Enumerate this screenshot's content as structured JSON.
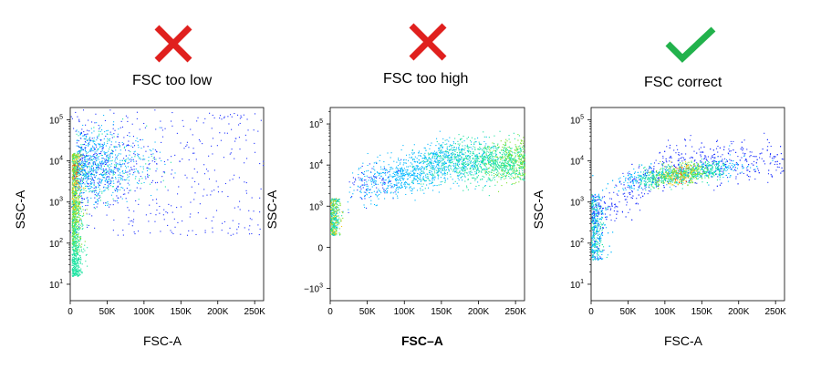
{
  "colors": {
    "cross": "#e0201e",
    "check": "#22b24c",
    "axis": "#000000"
  },
  "chart_data": [
    {
      "type": "scatter",
      "title": "FSC too low",
      "status": "cross",
      "xlabel": "FSC-A",
      "ylabel": "SSC-A",
      "x_ticks": [
        {
          "v": 0,
          "label": "0"
        },
        {
          "v": 50000,
          "label": "50K"
        },
        {
          "v": 100000,
          "label": "100K"
        },
        {
          "v": 150000,
          "label": "150K"
        },
        {
          "v": 200000,
          "label": "200K"
        },
        {
          "v": 250000,
          "label": "250K"
        }
      ],
      "y_ticks": [
        {
          "v": 1,
          "base": "10",
          "exp": "1"
        },
        {
          "v": 2,
          "base": "10",
          "exp": "2"
        },
        {
          "v": 3,
          "base": "10",
          "exp": "3"
        },
        {
          "v": 4,
          "base": "10",
          "exp": "4"
        },
        {
          "v": 5,
          "base": "10",
          "exp": "5"
        }
      ],
      "xlim": [
        0,
        262144
      ],
      "ylim": [
        0.6,
        5.3
      ],
      "y_scale": "log",
      "population": "dense streak at very low FSC-A along the left edge spreading to high SSC-A"
    },
    {
      "type": "scatter",
      "title": "FSC too high",
      "status": "cross",
      "xlabel": "FSC–A",
      "ylabel": "SSC-A",
      "x_ticks": [
        {
          "v": 0,
          "label": "0"
        },
        {
          "v": 50000,
          "label": "50K"
        },
        {
          "v": 100000,
          "label": "100K"
        },
        {
          "v": 150000,
          "label": "150K"
        },
        {
          "v": 200000,
          "label": "200K"
        },
        {
          "v": 250000,
          "label": "250K"
        }
      ],
      "y_ticks": [
        {
          "v": -1,
          "base": "−10",
          "exp": "3"
        },
        {
          "v": 0,
          "base": "0",
          "exp": ""
        },
        {
          "v": 1,
          "base": "10",
          "exp": "3"
        },
        {
          "v": 2,
          "base": "10",
          "exp": "4"
        },
        {
          "v": 3,
          "base": "10",
          "exp": "5"
        }
      ],
      "xlim": [
        0,
        262144
      ],
      "ylim": [
        -1.3,
        3.4
      ],
      "y_scale": "biexponential",
      "population": "cells pushed to high FSC-A, dense cloud near the right edge"
    },
    {
      "type": "scatter",
      "title": "FSC correct",
      "status": "check",
      "xlabel": "FSC-A",
      "ylabel": "SSC-A",
      "x_ticks": [
        {
          "v": 0,
          "label": "0"
        },
        {
          "v": 50000,
          "label": "50K"
        },
        {
          "v": 100000,
          "label": "100K"
        },
        {
          "v": 150000,
          "label": "150K"
        },
        {
          "v": 200000,
          "label": "200K"
        },
        {
          "v": 250000,
          "label": "250K"
        }
      ],
      "y_ticks": [
        {
          "v": 1,
          "base": "10",
          "exp": "1"
        },
        {
          "v": 2,
          "base": "10",
          "exp": "2"
        },
        {
          "v": 3,
          "base": "10",
          "exp": "3"
        },
        {
          "v": 4,
          "base": "10",
          "exp": "4"
        },
        {
          "v": 5,
          "base": "10",
          "exp": "5"
        }
      ],
      "xlim": [
        0,
        262144
      ],
      "ylim": [
        0.6,
        5.3
      ],
      "y_scale": "log",
      "population": "main population centred around FSC-A 100K–150K, SSC-A 10^4"
    }
  ]
}
